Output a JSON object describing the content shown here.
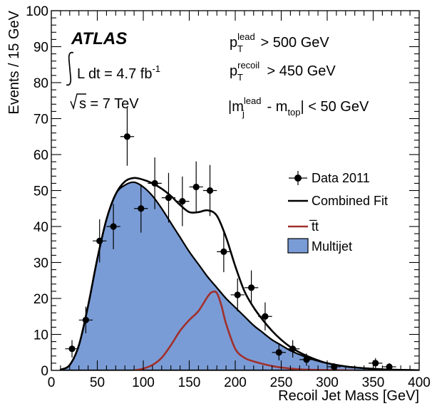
{
  "chart_data": {
    "type": "scatter",
    "xlabel": "Recoil Jet Mass [GeV]",
    "ylabel": "Events / 15 GeV",
    "xlim": [
      0,
      400
    ],
    "ylim": [
      0,
      100
    ],
    "x_ticks": [
      "0",
      "50",
      "100",
      "150",
      "200",
      "250",
      "300",
      "350",
      "400"
    ],
    "y_ticks": [
      "0",
      "10",
      "20",
      "30",
      "40",
      "50",
      "60",
      "70",
      "80",
      "90",
      "100"
    ],
    "legend_position": "right",
    "legend": [
      {
        "label": "Data 2011",
        "kind": "points"
      },
      {
        "label": "Combined Fit",
        "kind": "line"
      },
      {
        "label": "t̅t",
        "kind": "line"
      },
      {
        "label": "Multijet",
        "kind": "fill"
      }
    ],
    "annotations": {
      "experiment": "ATLAS",
      "lumi": "L dt = 4.7 fb",
      "lumi_exp": "-1",
      "energy_rest": "s = 7 TeV",
      "cut1_main": "p",
      "cut1_sup": "lead",
      "cut1_sub": "T",
      "cut1_rest": " > 500 GeV",
      "cut2_main": "p",
      "cut2_sup": "recoil",
      "cut2_sub": "T",
      "cut2_rest": " > 450 GeV",
      "cut3_pre": "|m",
      "cut3_sup": "lead",
      "cut3_sub": "j",
      "cut3_mid": " - m",
      "cut3_sub2": "top",
      "cut3_rest": "| < 50 GeV"
    },
    "series": [
      {
        "name": "Data 2011",
        "type": "points",
        "x": [
          22.5,
          37.5,
          52.5,
          67.5,
          82.5,
          97.5,
          112.5,
          127.5,
          142.5,
          157.5,
          172.5,
          187.5,
          202.5,
          217.5,
          232.5,
          247.5,
          262.5,
          277.5,
          307.5,
          352.5,
          367.5
        ],
        "y": [
          6,
          14,
          36,
          40,
          65,
          45,
          52,
          48,
          47,
          51,
          50,
          33,
          21,
          23,
          15,
          5,
          6,
          3,
          1,
          2,
          1
        ],
        "err": [
          2.4,
          3.7,
          6,
          6.3,
          8.1,
          6.7,
          7.2,
          6.9,
          6.9,
          7.1,
          7.1,
          5.7,
          4.6,
          4.8,
          3.9,
          2.2,
          2.4,
          1.7,
          1,
          1.4,
          1
        ]
      },
      {
        "name": "Combined Fit",
        "type": "line",
        "color": "#000000",
        "x": [
          10,
          20,
          30,
          40,
          50,
          60,
          70,
          80,
          90,
          100,
          110,
          120,
          130,
          140,
          150,
          160,
          170,
          180,
          190,
          200,
          210,
          220,
          230,
          240,
          250,
          260,
          270,
          280,
          290,
          300,
          320,
          340,
          360,
          380,
          400
        ],
        "y": [
          0.2,
          1.5,
          7,
          18,
          31,
          42,
          49,
          52.5,
          53.5,
          53,
          52,
          50.5,
          48.5,
          46,
          44,
          44,
          44.5,
          43,
          37,
          29,
          22,
          17.5,
          14,
          11,
          8.5,
          6.5,
          5,
          3.8,
          2.8,
          2,
          1.1,
          0.6,
          0.3,
          0.15,
          0.05
        ]
      },
      {
        "name": "t̅t",
        "type": "line",
        "color": "#a0302c",
        "x": [
          90,
          100,
          110,
          120,
          130,
          140,
          150,
          160,
          170,
          175,
          180,
          185,
          190,
          200,
          210,
          220,
          230,
          240,
          250,
          260,
          270,
          280,
          300,
          330
        ],
        "y": [
          0,
          0.5,
          1.5,
          3.5,
          7,
          11,
          14,
          16.5,
          20.5,
          21.8,
          21.5,
          18,
          13,
          6,
          3.5,
          2.5,
          1.8,
          1.2,
          0.8,
          0.5,
          0.3,
          0.2,
          0.1,
          0
        ]
      },
      {
        "name": "Multijet",
        "type": "area",
        "color": "#7a9cd6",
        "x": [
          10,
          20,
          30,
          40,
          50,
          60,
          70,
          80,
          90,
          100,
          110,
          120,
          130,
          140,
          150,
          160,
          170,
          180,
          190,
          200,
          210,
          220,
          230,
          240,
          250,
          260,
          270,
          280,
          290,
          300,
          320,
          340,
          360,
          380,
          400
        ],
        "y": [
          0.2,
          1.5,
          7,
          18,
          31,
          42,
          49,
          51.5,
          52.3,
          51,
          48.5,
          45,
          41,
          37,
          33,
          29.5,
          26,
          23,
          20,
          17.5,
          15,
          12.5,
          10.5,
          8.5,
          7,
          5.5,
          4.4,
          3.4,
          2.6,
          2,
          1.1,
          0.6,
          0.3,
          0.15,
          0.05
        ]
      }
    ]
  }
}
